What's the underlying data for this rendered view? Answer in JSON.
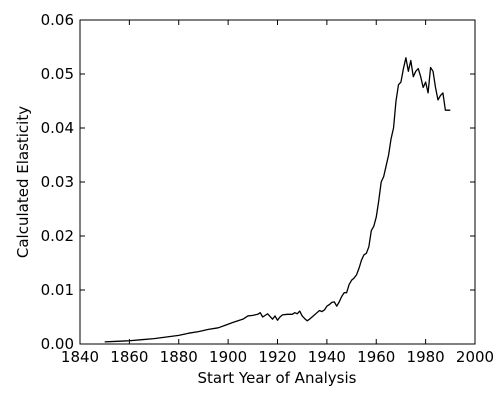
{
  "chart_data": {
    "type": "line",
    "title": "",
    "xlabel": "Start Year of Analysis",
    "ylabel": "Calculated Elasticity",
    "xlim": [
      1840,
      2000
    ],
    "ylim": [
      0.0,
      0.06
    ],
    "x_ticks": [
      "1840",
      "1860",
      "1880",
      "1900",
      "1920",
      "1940",
      "1960",
      "1980",
      "2000"
    ],
    "y_ticks": [
      "0.00",
      "0.01",
      "0.02",
      "0.03",
      "0.04",
      "0.05",
      "0.06"
    ],
    "grid": false,
    "legend": "none",
    "line_color": "#000000",
    "series": [
      {
        "x": [
          1850,
          1855,
          1860,
          1865,
          1870,
          1875,
          1880,
          1884,
          1888,
          1892,
          1896,
          1899,
          1902,
          1904,
          1906,
          1908,
          1910,
          1912,
          1913,
          1914,
          1916,
          1918,
          1919,
          1920,
          1921,
          1922,
          1924,
          1926,
          1927,
          1928,
          1929,
          1930,
          1931,
          1932,
          1933,
          1934,
          1936,
          1937,
          1938,
          1939,
          1940,
          1941,
          1942,
          1943,
          1944,
          1945,
          1946,
          1947,
          1948,
          1949,
          1950,
          1951,
          1952,
          1953,
          1954,
          1955,
          1956,
          1957,
          1958,
          1959,
          1960,
          1961,
          1962,
          1963,
          1964,
          1965,
          1966,
          1967,
          1968,
          1969,
          1970,
          1971,
          1972,
          1973,
          1974,
          1975,
          1976,
          1977,
          1978,
          1979,
          1980,
          1981,
          1982,
          1983,
          1984,
          1985,
          1986,
          1987,
          1988,
          1989,
          1990
        ],
        "y": [
          0.0004,
          0.0005,
          0.0006,
          0.0008,
          0.001,
          0.0013,
          0.0016,
          0.002,
          0.0023,
          0.0027,
          0.003,
          0.0035,
          0.004,
          0.0043,
          0.0046,
          0.0052,
          0.0053,
          0.0055,
          0.0058,
          0.005,
          0.0056,
          0.0046,
          0.0052,
          0.0044,
          0.005,
          0.0054,
          0.0055,
          0.0055,
          0.0058,
          0.0056,
          0.0061,
          0.0052,
          0.0047,
          0.0043,
          0.0046,
          0.005,
          0.0058,
          0.0062,
          0.006,
          0.0063,
          0.007,
          0.0073,
          0.0077,
          0.0078,
          0.007,
          0.0078,
          0.0088,
          0.0095,
          0.0095,
          0.011,
          0.0118,
          0.0122,
          0.0128,
          0.014,
          0.0155,
          0.0165,
          0.0168,
          0.018,
          0.021,
          0.0218,
          0.0235,
          0.0265,
          0.03,
          0.031,
          0.033,
          0.035,
          0.038,
          0.04,
          0.045,
          0.048,
          0.0485,
          0.051,
          0.053,
          0.0505,
          0.0525,
          0.0495,
          0.0505,
          0.051,
          0.0495,
          0.0475,
          0.0485,
          0.0465,
          0.0512,
          0.0505,
          0.0475,
          0.0452,
          0.046,
          0.0465,
          0.0433,
          0.0433,
          0.0433
        ]
      }
    ]
  }
}
